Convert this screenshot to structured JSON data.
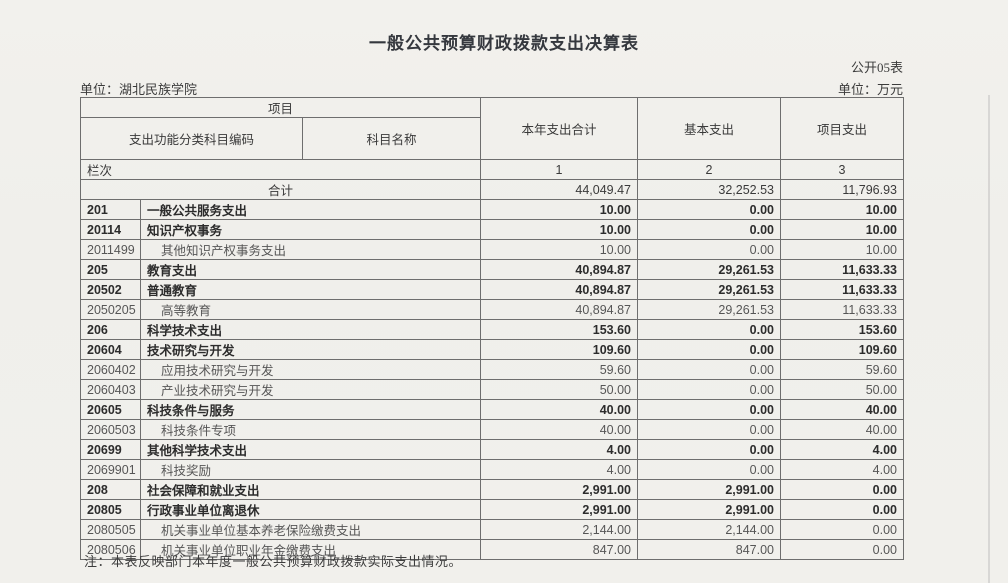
{
  "page": {
    "title": "一般公共预算财政拨款支出决算表",
    "table_code_label": "公开05表",
    "org_unit_label": "单位：湖北民族学院",
    "measure_unit_label": "单位：万元",
    "note": "注：本表反映部门本年度一般公共预算财政拨款实际支出情况。"
  },
  "table": {
    "header": {
      "project_group_label": "项目",
      "code_column_label": "支出功能分类科目编码",
      "subject_name_label": "科目名称",
      "year_total_label": "本年支出合计",
      "basic_expense_label": "基本支出",
      "project_expense_label": "项目支出",
      "column_index_label": "栏次",
      "column_indexes": [
        "1",
        "2",
        "3"
      ]
    },
    "total_row": {
      "label": "合计",
      "total": "44,049.47",
      "basic": "32,252.53",
      "project": "11,796.93"
    },
    "rows": [
      {
        "code": "201",
        "name": "一般公共服务支出",
        "total": "10.00",
        "basic": "0.00",
        "project": "10.00",
        "bold": true
      },
      {
        "code": "20114",
        "name": "知识产权事务",
        "total": "10.00",
        "basic": "0.00",
        "project": "10.00",
        "bold": true
      },
      {
        "code": "2011499",
        "name": "其他知识产权事务支出",
        "total": "10.00",
        "basic": "0.00",
        "project": "10.00",
        "bold": false
      },
      {
        "code": "205",
        "name": "教育支出",
        "total": "40,894.87",
        "basic": "29,261.53",
        "project": "11,633.33",
        "bold": true
      },
      {
        "code": "20502",
        "name": "普通教育",
        "total": "40,894.87",
        "basic": "29,261.53",
        "project": "11,633.33",
        "bold": true
      },
      {
        "code": "2050205",
        "name": "高等教育",
        "total": "40,894.87",
        "basic": "29,261.53",
        "project": "11,633.33",
        "bold": false
      },
      {
        "code": "206",
        "name": "科学技术支出",
        "total": "153.60",
        "basic": "0.00",
        "project": "153.60",
        "bold": true
      },
      {
        "code": "20604",
        "name": "技术研究与开发",
        "total": "109.60",
        "basic": "0.00",
        "project": "109.60",
        "bold": true
      },
      {
        "code": "2060402",
        "name": "应用技术研究与开发",
        "total": "59.60",
        "basic": "0.00",
        "project": "59.60",
        "bold": false
      },
      {
        "code": "2060403",
        "name": "产业技术研究与开发",
        "total": "50.00",
        "basic": "0.00",
        "project": "50.00",
        "bold": false
      },
      {
        "code": "20605",
        "name": "科技条件与服务",
        "total": "40.00",
        "basic": "0.00",
        "project": "40.00",
        "bold": true
      },
      {
        "code": "2060503",
        "name": "科技条件专项",
        "total": "40.00",
        "basic": "0.00",
        "project": "40.00",
        "bold": false
      },
      {
        "code": "20699",
        "name": "其他科学技术支出",
        "total": "4.00",
        "basic": "0.00",
        "project": "4.00",
        "bold": true
      },
      {
        "code": "2069901",
        "name": "科技奖励",
        "total": "4.00",
        "basic": "0.00",
        "project": "4.00",
        "bold": false
      },
      {
        "code": "208",
        "name": "社会保障和就业支出",
        "total": "2,991.00",
        "basic": "2,991.00",
        "project": "0.00",
        "bold": true
      },
      {
        "code": "20805",
        "name": "行政事业单位离退休",
        "total": "2,991.00",
        "basic": "2,991.00",
        "project": "0.00",
        "bold": true
      },
      {
        "code": "2080505",
        "name": "机关事业单位基本养老保险缴费支出",
        "total": "2,144.00",
        "basic": "2,144.00",
        "project": "0.00",
        "bold": false
      },
      {
        "code": "2080506",
        "name": "机关事业单位职业年金缴费支出",
        "total": "847.00",
        "basic": "847.00",
        "project": "0.00",
        "bold": false
      }
    ]
  }
}
